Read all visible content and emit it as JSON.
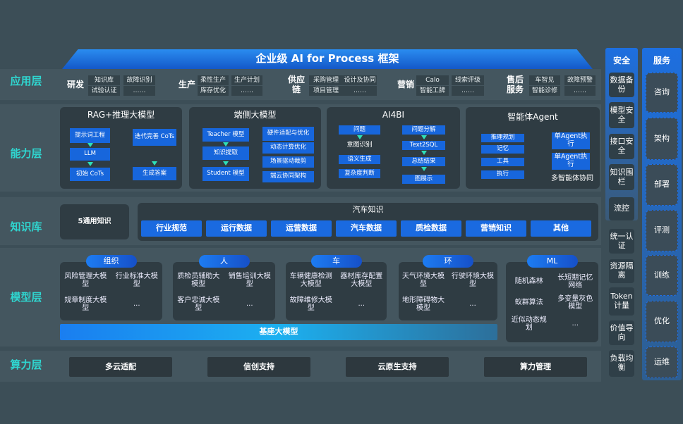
{
  "title": "企业级 AI for Process 框架",
  "layers": {
    "app": "应用层",
    "capability": "能力层",
    "knowledge": "知识库",
    "model": "模型层",
    "compute": "算力层"
  },
  "app_groups": [
    {
      "name": "研发",
      "items": [
        "知识库",
        "故障识别",
        "试验认证",
        "……"
      ]
    },
    {
      "name": "生产",
      "items": [
        "柔性生产",
        "生产计划",
        "库存优化",
        "……"
      ]
    },
    {
      "name": "供应链",
      "items": [
        "采购管理",
        "设计及协同",
        "项目管理",
        "……"
      ]
    },
    {
      "name": "营销",
      "items": [
        "Calo",
        "线索评级",
        "智能工牌",
        "……"
      ]
    },
    {
      "name": "售后服务",
      "items": [
        "车智见",
        "故障预警",
        "智能诊修",
        "……"
      ]
    }
  ],
  "capability": {
    "rag": {
      "title": "RAG+推理大模型",
      "items": [
        "提示词工程",
        "LLM",
        "初始 CoTs",
        "迭代完善 CoTs",
        "生成答案"
      ]
    },
    "edge": {
      "title": "端侧大模型",
      "items": [
        "Teacher 模型",
        "知识提取",
        "Student 模型",
        "硬件适配与优化",
        "动态计算优化",
        "场景驱动裁剪",
        "端云协同架构"
      ]
    },
    "ai4bi": {
      "title": "AI4BI",
      "items": [
        "问题",
        "意图识别",
        "语义生成",
        "复杂度判断",
        "问题分解",
        "Text2SQL",
        "总结结果",
        "图展示"
      ]
    },
    "agent": {
      "title": "智能体Agent",
      "items": [
        "推理规划",
        "记忆",
        "工具",
        "执行",
        "单Agent执行",
        "单Agent执行"
      ],
      "footer": "多智能体协同"
    }
  },
  "knowledge": {
    "general": "5通用知识",
    "auto_title": "汽车知识",
    "items": [
      "行业规范",
      "运行数据",
      "运营数据",
      "汽车数据",
      "质检数据",
      "营销知识",
      "其他"
    ]
  },
  "models": [
    {
      "name": "组织",
      "items": [
        "风险管理大模型",
        "行业标准大模型",
        "规章制度大模型",
        "..."
      ]
    },
    {
      "name": "人",
      "items": [
        "质检员辅助大模型",
        "销售培训大模型",
        "客户忠诚大模型",
        "..."
      ]
    },
    {
      "name": "车",
      "items": [
        "车辆健康检测大模型",
        "器材库存配置大模型",
        "故障维修大模型",
        "..."
      ]
    },
    {
      "name": "环",
      "items": [
        "天气环境大模型",
        "行驶环境大模型",
        "地形障碍物大模型",
        "..."
      ]
    },
    {
      "name": "ML",
      "items": [
        "随机森林",
        "长短期记忆网络",
        "蚁群算法",
        "多变量灰色模型",
        "近似动态规划",
        "..."
      ]
    }
  ],
  "base_model": "基座大模型",
  "compute": [
    "多云适配",
    "信创支持",
    "云原生支持",
    "算力管理"
  ],
  "security": {
    "title": "安全",
    "items": [
      "数据备份",
      "模型安全",
      "接口安全",
      "知识围栏",
      "流控",
      "统一认证",
      "资源隔离",
      "Token计量",
      "价值导向",
      "负载均衡"
    ]
  },
  "services": {
    "title": "服务",
    "items": [
      "咨询",
      "架构",
      "部署",
      "评测",
      "训练",
      "优化",
      "运维"
    ]
  },
  "colors": {
    "background": "#3c4e57",
    "accent_blue": "#1766dc",
    "layer_label": "#2fd6d0"
  }
}
